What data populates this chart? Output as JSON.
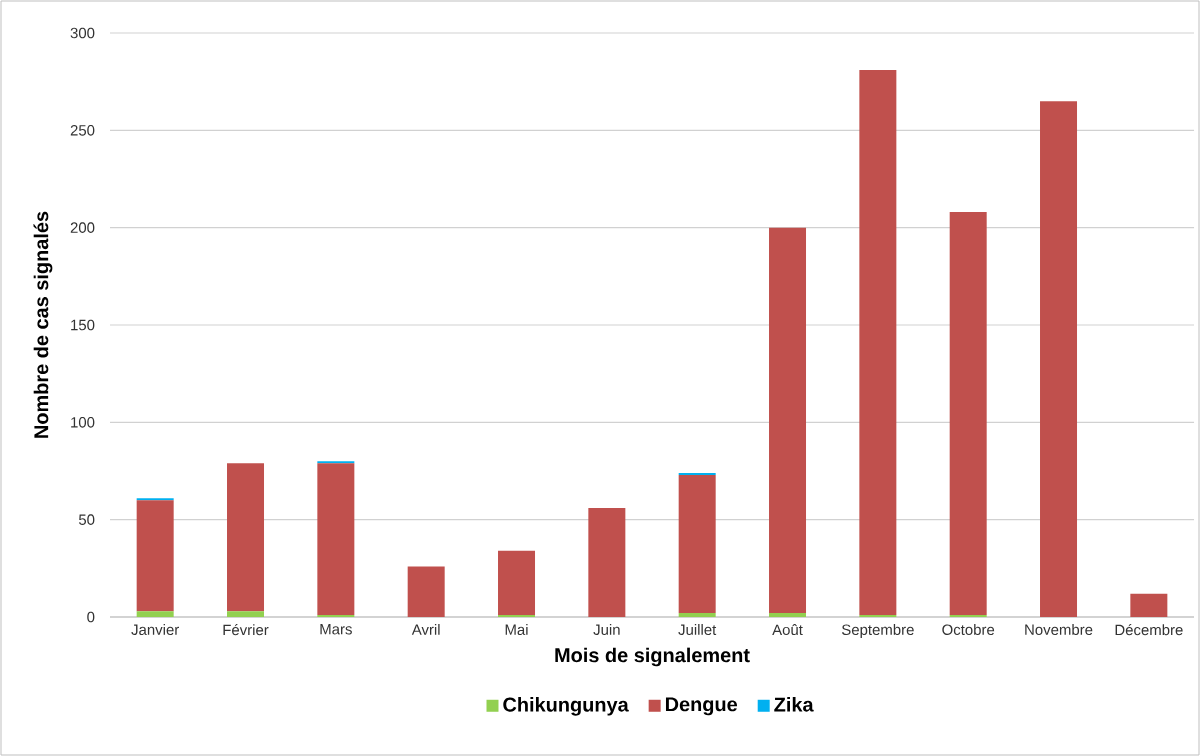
{
  "chart_data": {
    "type": "bar",
    "stacked": true,
    "xlabel": "Mois de signalement",
    "ylabel": "Nombre de cas signalés",
    "categories": [
      "Janvier",
      "Février",
      "Mars",
      "Avril",
      "Mai",
      "Juin",
      "Juillet",
      "Août",
      "Septembre",
      "Octobre",
      "Novembre",
      "Décembre"
    ],
    "series": [
      {
        "name": "Chikungunya",
        "color": "#92d050",
        "values": [
          3,
          3,
          1,
          0,
          1,
          0,
          2,
          2,
          1,
          1,
          0,
          0
        ]
      },
      {
        "name": "Dengue",
        "color": "#c0504d",
        "values": [
          57,
          76,
          78,
          26,
          33,
          56,
          71,
          198,
          280,
          207,
          265,
          12
        ]
      },
      {
        "name": "Zika",
        "color": "#00b0f0",
        "values": [
          1,
          0,
          1,
          0,
          0,
          0,
          1,
          0,
          0,
          0,
          0,
          0
        ]
      }
    ],
    "ylim": [
      0,
      300
    ],
    "yticks": [
      0,
      50,
      100,
      150,
      200,
      250,
      300
    ],
    "grid": "y",
    "legend": "bottom"
  }
}
